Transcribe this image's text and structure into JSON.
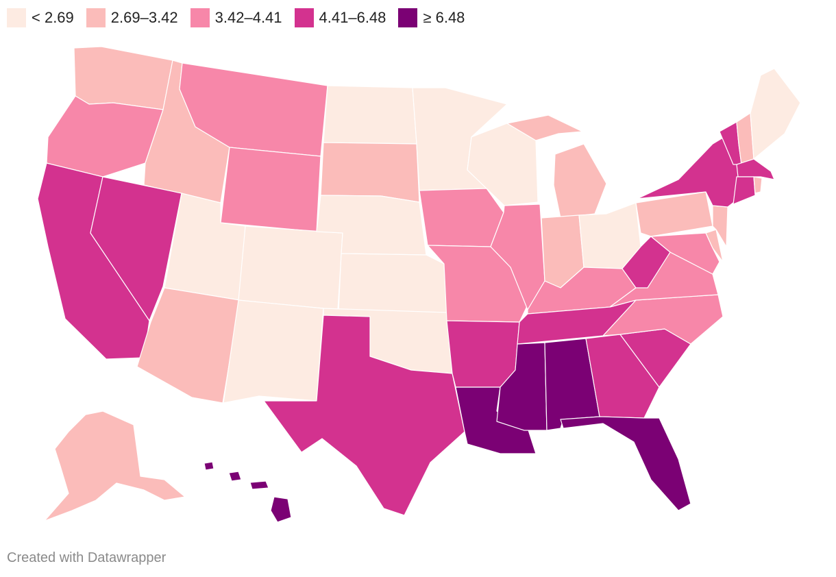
{
  "legend": {
    "items": [
      {
        "label": "< 2.69",
        "color": "#fdebe2"
      },
      {
        "label": "2.69–3.42",
        "color": "#fbbcba"
      },
      {
        "label": "3.42–4.41",
        "color": "#f787a9"
      },
      {
        "label": "4.41–6.48",
        "color": "#d3328f"
      },
      {
        "label": "≥ 6.48",
        "color": "#7b0174"
      }
    ]
  },
  "credit": "Created with Datawrapper",
  "state_classes": {
    "WA": 1,
    "OR": 2,
    "CA": 3,
    "ID": 1,
    "NV": 3,
    "MT": 2,
    "WY": 2,
    "UT": 0,
    "AZ": 1,
    "CO": 0,
    "NM": 0,
    "ND": 0,
    "SD": 1,
    "NE": 0,
    "KS": 0,
    "OK": 0,
    "TX": 3,
    "MN": 0,
    "IA": 2,
    "MO": 2,
    "AR": 3,
    "LA": 4,
    "WI": 0,
    "IL": 2,
    "MI": 1,
    "IN": 1,
    "OH": 0,
    "KY": 2,
    "TN": 3,
    "MS": 4,
    "AL": 4,
    "GA": 3,
    "FL": 4,
    "SC": 3,
    "NC": 2,
    "VA": 2,
    "WV": 3,
    "MD": 2,
    "DE": 1,
    "PA": 1,
    "NJ": 1,
    "NY": 3,
    "VT": 3,
    "NH": 1,
    "ME": 0,
    "MA": 3,
    "CT": 3,
    "RI": 1,
    "AK": 1,
    "HI": 4
  }
}
